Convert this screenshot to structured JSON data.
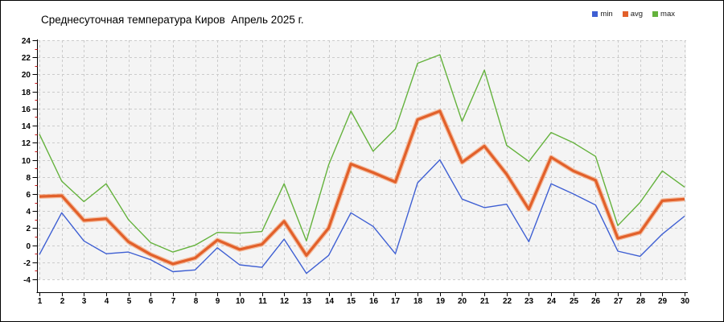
{
  "title": "Среднесуточная температура Киров  Апрель 2025 г.",
  "legend": [
    {
      "label": "min",
      "color": "#3E5FD3"
    },
    {
      "label": "avg",
      "color": "#E2602A"
    },
    {
      "label": "max",
      "color": "#64B23C"
    }
  ],
  "colors": {
    "plot_background": "#F4F4F4",
    "grid": "#CBCBCB",
    "axis": "#000000",
    "minor_tick": "#CC1111",
    "avg_halo": "#F4A274"
  },
  "chart_data": {
    "type": "line",
    "title": "Среднесуточная температура Киров  Апрель 2025 г.",
    "xlabel": "",
    "ylabel": "",
    "x": [
      1,
      2,
      3,
      4,
      5,
      6,
      7,
      8,
      9,
      10,
      11,
      12,
      13,
      14,
      15,
      16,
      17,
      18,
      19,
      20,
      21,
      22,
      23,
      24,
      25,
      26,
      27,
      28,
      29,
      30
    ],
    "x_tick_labels": [
      "1",
      "2",
      "3",
      "4",
      "5",
      "6",
      "7",
      "8",
      "9",
      "10",
      "11",
      "12",
      "13",
      "14",
      "15",
      "16",
      "17",
      "18",
      "19",
      "20",
      "21",
      "22",
      "23",
      "24",
      "25",
      "26",
      "27",
      "28",
      "29",
      "30"
    ],
    "ylim": [
      -4,
      24
    ],
    "y_tick_step": 2,
    "y_ticks": [
      24,
      22,
      20,
      18,
      16,
      14,
      12,
      10,
      8,
      6,
      4,
      2,
      0,
      -2,
      -4
    ],
    "grid": "dashed",
    "legend_position": "top-right",
    "series": [
      {
        "name": "min",
        "color": "#3E5FD3",
        "width": 1.4,
        "values": [
          -1.1,
          3.8,
          0.5,
          -1.0,
          -0.8,
          -1.7,
          -3.1,
          -2.9,
          -0.3,
          -2.3,
          -2.6,
          0.7,
          -3.3,
          -1.2,
          3.8,
          2.2,
          -1.0,
          7.3,
          10.0,
          5.4,
          4.4,
          4.8,
          0.4,
          7.2,
          6.0,
          4.7,
          -0.7,
          -1.3,
          1.3,
          3.4
        ]
      },
      {
        "name": "avg",
        "color": "#E2602A",
        "halo": "#F4A274",
        "width": 3.2,
        "values": [
          5.7,
          5.8,
          2.9,
          3.1,
          0.4,
          -1.1,
          -2.2,
          -1.5,
          0.6,
          -0.5,
          0.1,
          2.8,
          -1.2,
          2.0,
          9.5,
          8.5,
          7.4,
          14.7,
          15.7,
          9.7,
          11.6,
          8.3,
          4.2,
          10.3,
          8.7,
          7.6,
          0.8,
          1.5,
          5.2,
          5.4
        ]
      },
      {
        "name": "max",
        "color": "#64B23C",
        "width": 1.4,
        "values": [
          13.0,
          7.5,
          5.1,
          7.2,
          3.0,
          0.3,
          -0.8,
          0.0,
          1.5,
          1.4,
          1.6,
          7.2,
          0.5,
          9.4,
          15.7,
          11.0,
          13.6,
          21.3,
          22.3,
          14.5,
          20.5,
          11.7,
          9.8,
          13.2,
          12.0,
          10.4,
          2.3,
          5.0,
          8.7,
          6.8
        ]
      }
    ]
  }
}
